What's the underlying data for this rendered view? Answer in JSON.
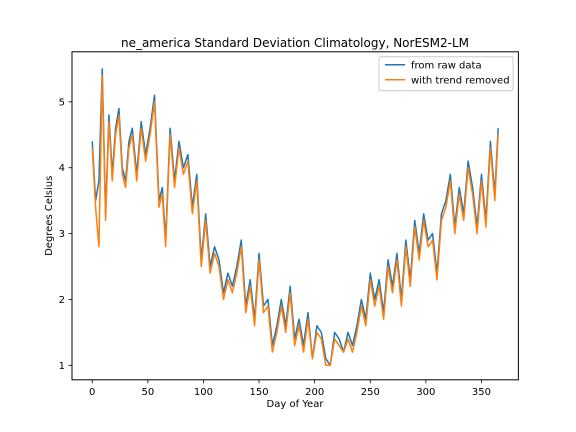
{
  "chart_data": {
    "type": "line",
    "title": "ne_america Standard Deviation Climatology, NorESM2-LM",
    "xlabel": "Day of Year",
    "ylabel": "Degrees Celsius",
    "xlim": [
      -18.2,
      383.2
    ],
    "ylim": [
      0.78,
      5.76
    ],
    "xticks": [
      0,
      50,
      100,
      150,
      200,
      250,
      300,
      350
    ],
    "yticks": [
      1,
      2,
      3,
      4,
      5
    ],
    "grid": false,
    "legend_position": "top-right",
    "series": [
      {
        "name": "from raw data",
        "color": "#1f77b4",
        "x": [
          0,
          3,
          6,
          9,
          12,
          15,
          18,
          21,
          24,
          27,
          30,
          33,
          36,
          40,
          44,
          48,
          52,
          56,
          60,
          63,
          66,
          70,
          74,
          78,
          82,
          86,
          90,
          94,
          98,
          102,
          106,
          110,
          114,
          118,
          122,
          126,
          130,
          134,
          138,
          142,
          146,
          150,
          154,
          158,
          162,
          166,
          170,
          174,
          178,
          182,
          186,
          190,
          194,
          198,
          202,
          206,
          210,
          214,
          218,
          222,
          226,
          230,
          234,
          238,
          242,
          246,
          250,
          254,
          258,
          262,
          266,
          270,
          274,
          278,
          282,
          286,
          290,
          294,
          298,
          302,
          306,
          310,
          314,
          318,
          322,
          326,
          330,
          334,
          338,
          342,
          346,
          350,
          354,
          358,
          362,
          365
        ],
        "values": [
          4.4,
          3.5,
          3.8,
          5.5,
          3.3,
          4.8,
          3.9,
          4.6,
          4.9,
          4.0,
          3.8,
          4.4,
          4.6,
          3.9,
          4.7,
          4.2,
          4.6,
          5.1,
          3.5,
          3.7,
          2.9,
          4.6,
          3.8,
          4.4,
          4.0,
          4.2,
          3.4,
          3.9,
          2.6,
          3.3,
          2.5,
          2.8,
          2.6,
          2.1,
          2.4,
          2.2,
          2.5,
          2.9,
          1.9,
          2.3,
          1.7,
          2.7,
          1.9,
          2.0,
          1.3,
          1.6,
          2.0,
          1.6,
          2.2,
          1.4,
          1.7,
          1.3,
          1.8,
          1.1,
          1.6,
          1.5,
          1.1,
          1.0,
          1.5,
          1.4,
          1.2,
          1.5,
          1.3,
          1.6,
          2.0,
          1.7,
          2.4,
          2.0,
          2.3,
          1.8,
          2.6,
          2.2,
          2.7,
          2.0,
          2.9,
          2.3,
          3.2,
          2.7,
          3.3,
          2.9,
          3.0,
          2.4,
          3.3,
          3.5,
          3.9,
          3.1,
          3.7,
          3.3,
          4.1,
          3.7,
          3.1,
          3.9,
          3.2,
          4.4,
          3.6,
          4.6
        ]
      },
      {
        "name": "with trend removed",
        "color": "#ff7f0e",
        "x": [
          0,
          3,
          6,
          9,
          12,
          15,
          18,
          21,
          24,
          27,
          30,
          33,
          36,
          40,
          44,
          48,
          52,
          56,
          60,
          63,
          66,
          70,
          74,
          78,
          82,
          86,
          90,
          94,
          98,
          102,
          106,
          110,
          114,
          118,
          122,
          126,
          130,
          134,
          138,
          142,
          146,
          150,
          154,
          158,
          162,
          166,
          170,
          174,
          178,
          182,
          186,
          190,
          194,
          198,
          202,
          206,
          210,
          214,
          218,
          222,
          226,
          230,
          234,
          238,
          242,
          246,
          250,
          254,
          258,
          262,
          266,
          270,
          274,
          278,
          282,
          286,
          290,
          294,
          298,
          302,
          306,
          310,
          314,
          318,
          322,
          326,
          330,
          334,
          338,
          342,
          346,
          350,
          354,
          358,
          362,
          365
        ],
        "values": [
          4.3,
          3.4,
          2.8,
          5.4,
          3.2,
          4.7,
          3.8,
          4.5,
          4.8,
          3.9,
          3.7,
          4.3,
          4.5,
          3.8,
          4.6,
          4.1,
          4.5,
          5.0,
          3.4,
          3.6,
          2.8,
          4.5,
          3.7,
          4.3,
          3.9,
          4.1,
          3.3,
          3.8,
          2.5,
          3.2,
          2.4,
          2.7,
          2.5,
          2.0,
          2.3,
          2.1,
          2.4,
          2.8,
          1.8,
          2.2,
          1.6,
          2.6,
          1.8,
          1.9,
          1.2,
          1.5,
          1.9,
          1.5,
          2.1,
          1.3,
          1.6,
          1.2,
          1.7,
          1.1,
          1.5,
          1.4,
          1.0,
          1.0,
          1.4,
          1.3,
          1.2,
          1.4,
          1.2,
          1.5,
          1.9,
          1.6,
          2.3,
          1.9,
          2.2,
          1.7,
          2.5,
          2.1,
          2.6,
          1.9,
          2.8,
          2.2,
          3.1,
          2.6,
          3.2,
          2.8,
          2.9,
          2.3,
          3.2,
          3.4,
          3.8,
          3.0,
          3.6,
          3.2,
          4.0,
          3.6,
          3.0,
          3.8,
          3.1,
          4.3,
          3.5,
          4.5
        ]
      }
    ]
  }
}
